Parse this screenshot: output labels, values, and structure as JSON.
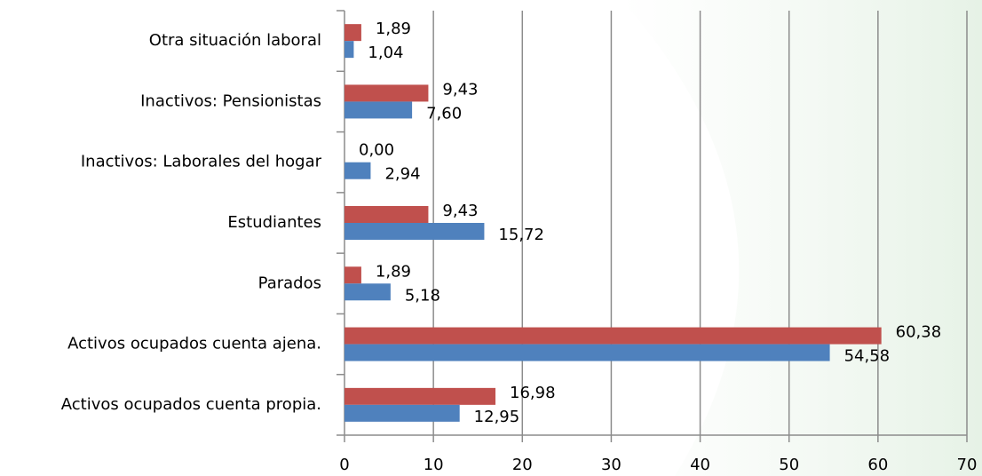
{
  "chart_data": {
    "type": "bar",
    "orientation": "horizontal",
    "categories": [
      "Otra situación laboral",
      "Inactivos: Pensionistas",
      "Inactivos: Laborales del hogar",
      "Estudiantes",
      "Parados",
      "Activos ocupados cuenta ajena.",
      "Activos ocupados cuenta propia."
    ],
    "series": [
      {
        "color": "#c0504d",
        "values": [
          1.89,
          9.43,
          0.0,
          9.43,
          1.89,
          60.38,
          16.98
        ],
        "value_labels": [
          "1,89",
          "9,43",
          "0,00",
          "9,43",
          "1,89",
          "60,38",
          "16,98"
        ]
      },
      {
        "color": "#4f81bd",
        "values": [
          1.04,
          7.6,
          2.94,
          15.72,
          5.18,
          54.58,
          12.95
        ],
        "value_labels": [
          "1,04",
          "7,60",
          "2,94",
          "15,72",
          "5,18",
          "54,58",
          "12,95"
        ]
      }
    ],
    "xlim": [
      0,
      70
    ],
    "xticks": [
      0,
      10,
      20,
      30,
      40,
      50,
      60,
      70
    ],
    "grid": true
  }
}
